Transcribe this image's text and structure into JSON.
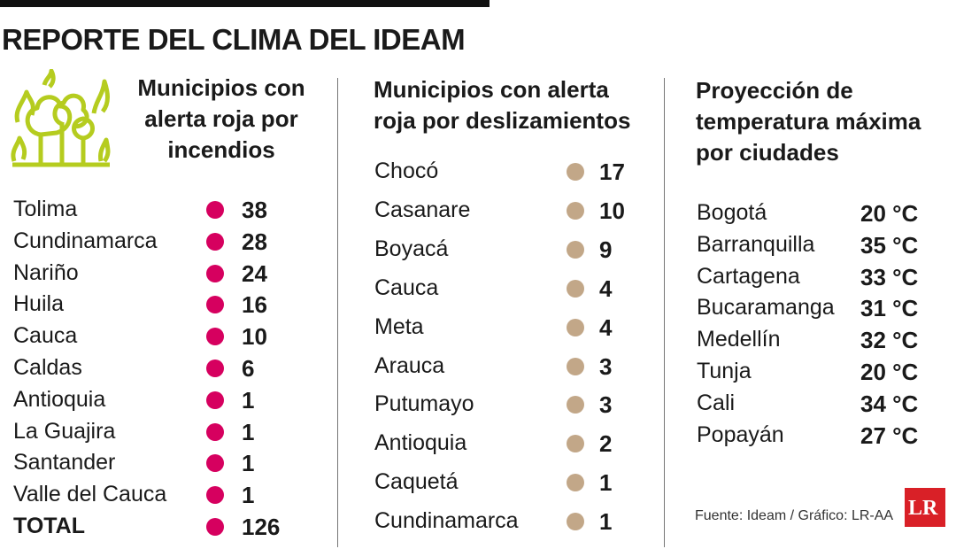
{
  "header": {
    "title": "REPORTE DEL CLIMA DEL IDEAM"
  },
  "sections": [
    {
      "title_lines": [
        "Municipios con",
        "alerta roja por",
        "incendios"
      ],
      "rows": [
        {
          "label": "Tolima",
          "value": 38
        },
        {
          "label": "Cundinamarca",
          "value": 28
        },
        {
          "label": "Nariño",
          "value": 24
        },
        {
          "label": "Huila",
          "value": 16
        },
        {
          "label": "Cauca",
          "value": 10
        },
        {
          "label": "Caldas",
          "value": 6
        },
        {
          "label": "Antioquia",
          "value": 1
        },
        {
          "label": "La Guajira",
          "value": 1
        },
        {
          "label": "Santander",
          "value": 1
        },
        {
          "label": "Valle del Cauca",
          "value": 1
        }
      ],
      "total": {
        "label": "TOTAL",
        "value": 126
      }
    },
    {
      "title_lines": [
        "Municipios con alerta",
        "roja por deslizamientos"
      ],
      "rows": [
        {
          "label": "Chocó",
          "value": 17
        },
        {
          "label": "Casanare",
          "value": 10
        },
        {
          "label": "Boyacá",
          "value": 9
        },
        {
          "label": "Cauca",
          "value": 4
        },
        {
          "label": "Meta",
          "value": 4
        },
        {
          "label": "Arauca",
          "value": 3
        },
        {
          "label": "Putumayo",
          "value": 3
        },
        {
          "label": "Antioquia",
          "value": 2
        },
        {
          "label": "Caquetá",
          "value": 1
        },
        {
          "label": "Cundinamarca",
          "value": 1
        }
      ]
    },
    {
      "title_lines": [
        "Proyección de",
        "temperatura máxima",
        "por ciudades"
      ],
      "rows": [
        {
          "label": "Bogotá",
          "value": "20 °C"
        },
        {
          "label": "Barranquilla",
          "value": "35 °C"
        },
        {
          "label": "Cartagena",
          "value": "33 °C"
        },
        {
          "label": "Bucaramanga",
          "value": "31 °C"
        },
        {
          "label": "Medellín",
          "value": "32 °C"
        },
        {
          "label": "Tunja",
          "value": "20 °C"
        },
        {
          "label": "Cali",
          "value": "34 °C"
        },
        {
          "label": "Popayán",
          "value": "27 °C"
        }
      ]
    }
  ],
  "source": "Fuente: Ideam / Gráfico: LR-AA",
  "logo": "LR"
}
